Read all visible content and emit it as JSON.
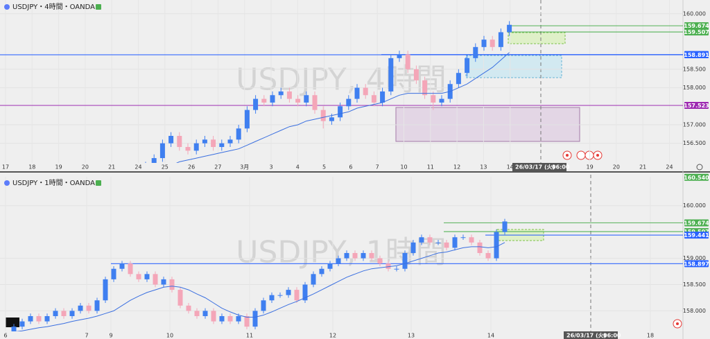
{
  "chart_data": [
    {
      "type": "candlestick",
      "title": "USDJPY・4時間・OANDA",
      "watermark": "USDJPY, 4時間",
      "x_labels": [
        "17",
        "18",
        "19",
        "20",
        "21",
        "24",
        "25",
        "26",
        "27",
        "3月",
        "3",
        "4",
        "5",
        "6",
        "7",
        "10",
        "11",
        "12",
        "13",
        "14",
        null,
        null,
        "19",
        "20",
        "21",
        "24"
      ],
      "date_badge": [
        "26/03/17 (火)",
        "06:00"
      ],
      "up_color": "#3f7ff0",
      "down_color": "#f4a6b8",
      "ma_color": "#3a6fe0",
      "ylim": [
        155.97,
        160.37
      ],
      "yticks": [
        {
          "value": 156.5,
          "label": "156.500"
        },
        {
          "value": 157,
          "label": "157.000"
        },
        {
          "value": 158,
          "label": "158.000"
        },
        {
          "value": 158.5,
          "label": "158.500"
        },
        {
          "value": 160,
          "label": "160.000"
        }
      ],
      "price_lines": [
        {
          "value": 159.674,
          "label": "159.674",
          "color": "#4caf50"
        },
        {
          "value": 159.507,
          "label": "159.507",
          "color": "#4caf50"
        },
        {
          "value": 158.897,
          "label": "158.897",
          "color": "#2962ff"
        },
        {
          "value": 158.891,
          "label": "158.891",
          "color": "#2962ff"
        },
        {
          "value": 157.523,
          "label": "157.523",
          "color": "#9c27b0"
        }
      ],
      "candles": [
        [
          155.8,
          156.0,
          155.7,
          155.9
        ],
        [
          155.9,
          156.2,
          155.8,
          156.1
        ],
        [
          156.1,
          156.6,
          156.0,
          156.5
        ],
        [
          156.5,
          156.8,
          156.4,
          156.7
        ],
        [
          156.7,
          156.8,
          156.3,
          156.4
        ],
        [
          156.4,
          156.5,
          156.2,
          156.3
        ],
        [
          156.3,
          156.6,
          156.2,
          156.5
        ],
        [
          156.5,
          156.7,
          156.4,
          156.6
        ],
        [
          156.6,
          156.7,
          156.3,
          156.4
        ],
        [
          156.4,
          156.6,
          156.3,
          156.5
        ],
        [
          156.5,
          156.7,
          156.4,
          156.6
        ],
        [
          156.6,
          157.0,
          156.5,
          156.9
        ],
        [
          156.9,
          157.5,
          156.8,
          157.4
        ],
        [
          157.4,
          157.8,
          157.3,
          157.7
        ],
        [
          157.7,
          157.8,
          157.5,
          157.6
        ],
        [
          157.6,
          157.9,
          157.5,
          157.8
        ],
        [
          157.8,
          158.0,
          157.7,
          157.9
        ],
        [
          157.9,
          158.0,
          157.6,
          157.7
        ],
        [
          157.7,
          157.8,
          157.5,
          157.6
        ],
        [
          157.6,
          157.9,
          157.5,
          157.8
        ],
        [
          157.8,
          157.9,
          157.3,
          157.4
        ],
        [
          157.4,
          157.5,
          156.9,
          157.1
        ],
        [
          157.1,
          157.3,
          157.0,
          157.2
        ],
        [
          157.2,
          157.6,
          157.1,
          157.5
        ],
        [
          157.5,
          157.8,
          157.4,
          157.7
        ],
        [
          157.7,
          158.1,
          157.6,
          158.0
        ],
        [
          158.0,
          158.1,
          157.7,
          157.8
        ],
        [
          157.8,
          157.9,
          157.5,
          157.6
        ],
        [
          157.6,
          158.0,
          157.5,
          157.9
        ],
        [
          157.9,
          158.9,
          157.8,
          158.8
        ],
        [
          158.8,
          159.0,
          158.7,
          158.9
        ],
        [
          158.9,
          159.0,
          158.4,
          158.5
        ],
        [
          158.5,
          158.6,
          158.1,
          158.2
        ],
        [
          158.2,
          158.3,
          157.7,
          157.8
        ],
        [
          157.8,
          157.9,
          157.4,
          157.6
        ],
        [
          157.6,
          157.8,
          157.5,
          157.7
        ],
        [
          157.7,
          158.2,
          157.6,
          158.1
        ],
        [
          158.1,
          158.5,
          158.0,
          158.4
        ],
        [
          158.4,
          158.9,
          158.3,
          158.8
        ],
        [
          158.8,
          159.2,
          158.7,
          159.1
        ],
        [
          159.1,
          159.4,
          159.0,
          159.3
        ],
        [
          159.3,
          159.4,
          159.0,
          159.1
        ],
        [
          159.1,
          159.6,
          159.0,
          159.5
        ],
        [
          159.5,
          159.8,
          159.4,
          159.7
        ]
      ],
      "ma": [
        155.7,
        155.75,
        155.8,
        155.9,
        156.0,
        156.05,
        156.1,
        156.15,
        156.2,
        156.25,
        156.3,
        156.35,
        156.45,
        156.55,
        156.65,
        156.75,
        156.85,
        156.95,
        157.0,
        157.1,
        157.15,
        157.2,
        157.25,
        157.3,
        157.35,
        157.45,
        157.5,
        157.55,
        157.6,
        157.7,
        157.8,
        157.85,
        157.85,
        157.85,
        157.85,
        157.85,
        157.9,
        158.0,
        158.1,
        158.25,
        158.4,
        158.55,
        158.75,
        158.95
      ]
    },
    {
      "type": "candlestick",
      "title": "USDJPY・1時間・OANDA",
      "watermark": "USDJPY, 1時間",
      "x_labels": [
        "6",
        "7",
        "9",
        "10",
        "11",
        "12",
        "13",
        "14",
        "18"
      ],
      "date_badge": [
        "26/03/17 (火)",
        "06:00"
      ],
      "up_color": "#3f7ff0",
      "down_color": "#f4a6b8",
      "ma_color": "#3a6fe0",
      "ylim": [
        157.61,
        160.55
      ],
      "yticks": [
        {
          "value": 158,
          "label": "158.000"
        },
        {
          "value": 158.5,
          "label": "158.500"
        },
        {
          "value": 159,
          "label": "159.000"
        },
        {
          "value": 160,
          "label": "160.000"
        }
      ],
      "price_lines": [
        {
          "value": 160.54,
          "label": "160.540",
          "color": "#4caf50"
        },
        {
          "value": 159.674,
          "label": "159.674",
          "color": "#4caf50"
        },
        {
          "value": 159.507,
          "label": "159.507",
          "color": "#4caf50"
        },
        {
          "value": 159.441,
          "label": "159.441",
          "color": "#2962ff"
        },
        {
          "value": 158.897,
          "label": "158.897",
          "color": "#2962ff"
        }
      ],
      "candles": [
        [
          157.6,
          157.75,
          157.55,
          157.7
        ],
        [
          157.7,
          157.85,
          157.65,
          157.8
        ],
        [
          157.8,
          157.95,
          157.75,
          157.9
        ],
        [
          157.9,
          157.95,
          157.75,
          157.8
        ],
        [
          157.8,
          157.95,
          157.75,
          157.9
        ],
        [
          157.9,
          158.05,
          157.85,
          158.0
        ],
        [
          158.0,
          158.05,
          157.85,
          157.9
        ],
        [
          157.9,
          158.05,
          157.85,
          158.0
        ],
        [
          158.0,
          158.15,
          157.95,
          158.1
        ],
        [
          158.1,
          158.15,
          157.95,
          158.0
        ],
        [
          158.0,
          158.25,
          157.95,
          158.2
        ],
        [
          158.2,
          158.65,
          158.15,
          158.6
        ],
        [
          158.6,
          158.85,
          158.55,
          158.8
        ],
        [
          158.8,
          158.95,
          158.75,
          158.9
        ],
        [
          158.9,
          158.95,
          158.65,
          158.7
        ],
        [
          158.7,
          158.75,
          158.55,
          158.6
        ],
        [
          158.6,
          158.75,
          158.55,
          158.7
        ],
        [
          158.7,
          158.75,
          158.45,
          158.5
        ],
        [
          158.5,
          158.65,
          158.45,
          158.6
        ],
        [
          158.6,
          158.65,
          158.35,
          158.4
        ],
        [
          158.4,
          158.45,
          158.05,
          158.1
        ],
        [
          158.1,
          158.15,
          157.95,
          158.0
        ],
        [
          158.0,
          158.05,
          157.85,
          157.9
        ],
        [
          157.9,
          158.05,
          157.85,
          158.0
        ],
        [
          158.0,
          158.05,
          157.75,
          157.8
        ],
        [
          157.8,
          157.95,
          157.75,
          157.9
        ],
        [
          157.9,
          157.95,
          157.75,
          157.8
        ],
        [
          157.8,
          157.95,
          157.75,
          157.9
        ],
        [
          157.9,
          157.95,
          157.65,
          157.7
        ],
        [
          157.7,
          158.05,
          157.65,
          158.0
        ],
        [
          158.0,
          158.25,
          157.95,
          158.2
        ],
        [
          158.2,
          158.35,
          158.15,
          158.3
        ],
        [
          158.3,
          158.35,
          158.25,
          158.3
        ],
        [
          158.3,
          158.45,
          158.25,
          158.4
        ],
        [
          158.4,
          158.45,
          158.15,
          158.2
        ],
        [
          158.2,
          158.55,
          158.15,
          158.5
        ],
        [
          158.5,
          158.75,
          158.45,
          158.7
        ],
        [
          158.7,
          158.85,
          158.65,
          158.8
        ],
        [
          158.8,
          158.95,
          158.75,
          158.9
        ],
        [
          158.9,
          159.05,
          158.85,
          159.0
        ],
        [
          159.0,
          159.15,
          158.95,
          159.1
        ],
        [
          159.1,
          159.15,
          158.95,
          159.0
        ],
        [
          159.0,
          159.15,
          158.95,
          159.1
        ],
        [
          159.1,
          159.15,
          158.95,
          159.0
        ],
        [
          159.0,
          159.05,
          158.85,
          158.9
        ],
        [
          158.9,
          158.95,
          158.75,
          158.8
        ],
        [
          158.8,
          158.85,
          158.75,
          158.8
        ],
        [
          158.8,
          159.15,
          158.75,
          159.1
        ],
        [
          159.1,
          159.35,
          159.05,
          159.3
        ],
        [
          159.3,
          159.45,
          159.25,
          159.4
        ],
        [
          159.4,
          159.45,
          159.25,
          159.3
        ],
        [
          159.3,
          159.35,
          159.25,
          159.3
        ],
        [
          159.3,
          159.35,
          159.15,
          159.2
        ],
        [
          159.2,
          159.45,
          159.15,
          159.4
        ],
        [
          159.4,
          159.45,
          159.35,
          159.4
        ],
        [
          159.4,
          159.45,
          159.25,
          159.3
        ],
        [
          159.3,
          159.35,
          159.05,
          159.1
        ],
        [
          159.1,
          159.15,
          158.95,
          159.0
        ],
        [
          159.0,
          159.55,
          158.95,
          159.5
        ],
        [
          159.5,
          159.75,
          159.45,
          159.7
        ]
      ],
      "ma": [
        157.6,
        157.62,
        157.65,
        157.68,
        157.7,
        157.73,
        157.76,
        157.8,
        157.83,
        157.86,
        157.9,
        157.95,
        158.0,
        158.1,
        158.2,
        158.28,
        158.35,
        158.4,
        158.45,
        158.47,
        158.45,
        158.4,
        158.32,
        158.25,
        158.15,
        158.05,
        157.98,
        157.92,
        157.88,
        157.88,
        157.92,
        157.98,
        158.05,
        158.12,
        158.18,
        158.25,
        158.32,
        158.4,
        158.48,
        158.56,
        158.64,
        158.7,
        158.76,
        158.8,
        158.82,
        158.84,
        158.86,
        158.9,
        158.95,
        159.0,
        159.05,
        159.1,
        159.12,
        159.16,
        159.2,
        159.22,
        159.22,
        159.2,
        159.22,
        159.3
      ]
    }
  ]
}
